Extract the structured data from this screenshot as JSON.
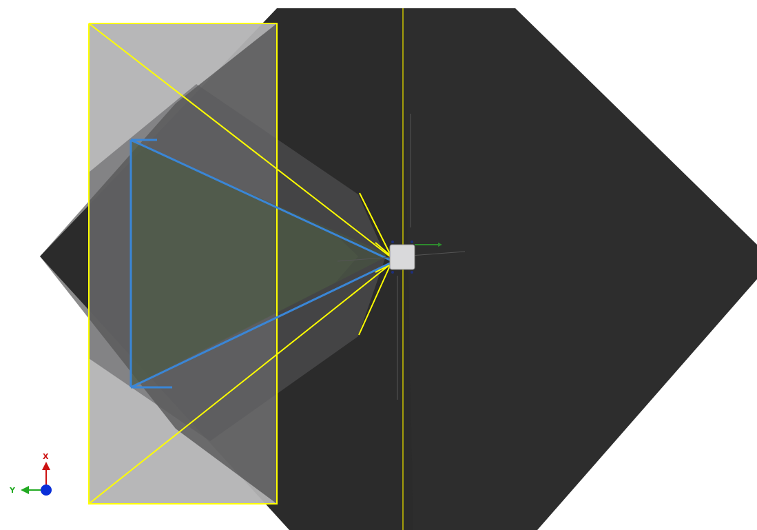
{
  "viewport": {
    "background": "#ffffff",
    "ground_plane_color": "#2b2b2b",
    "projection_color": "#b3b3b4",
    "sensor_color": "#d9d9db"
  },
  "frustums": {
    "outer": {
      "color": "#ffff00",
      "shape": "yellow outline frustum"
    },
    "inner": {
      "color": "#3a86d6",
      "shape": "blue outline frustum"
    }
  },
  "triad": {
    "x_label": "X",
    "y_label": "Y",
    "x_color": "#cc1111",
    "y_color": "#22aa22",
    "z_color": "#0a2fd8",
    "icons": {
      "x_arrow": "arrow-up-icon",
      "y_arrow": "arrow-left-icon",
      "z_dot": "dot-icon"
    }
  }
}
